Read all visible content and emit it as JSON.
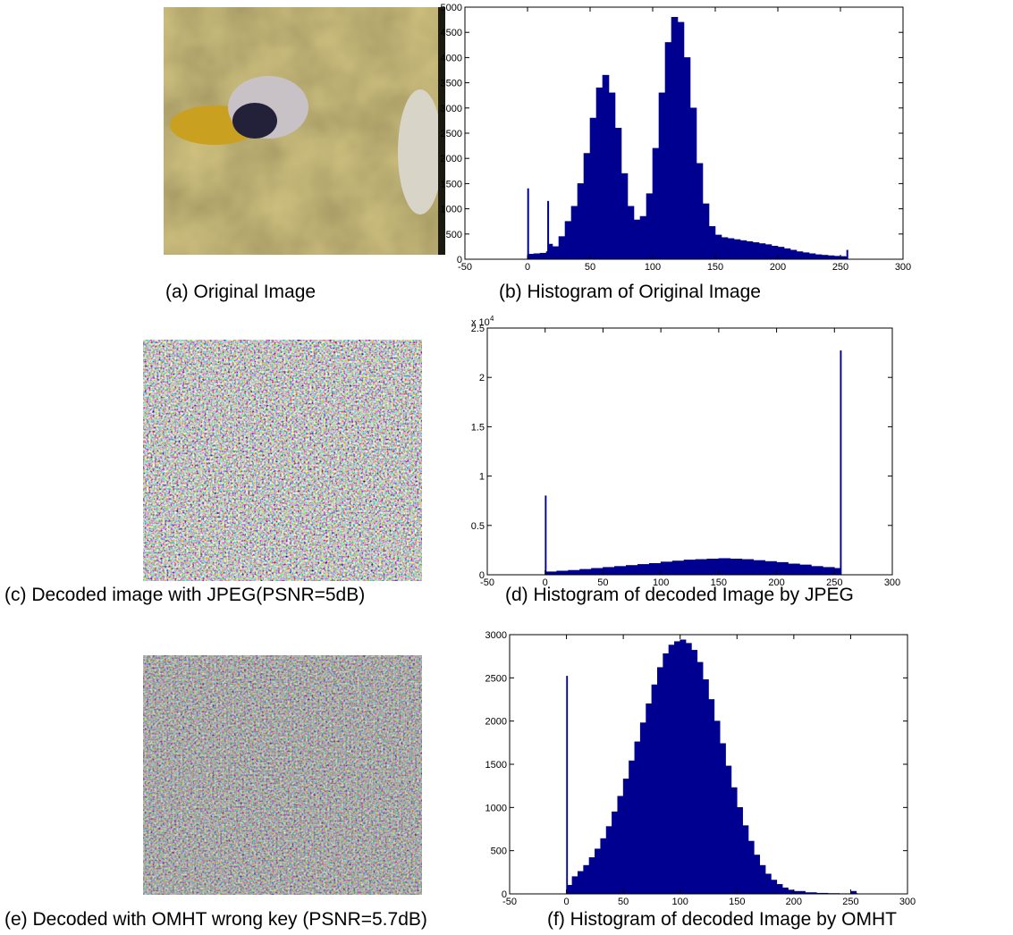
{
  "images": [
    {
      "caption": "(a) Original Image"
    },
    {
      "caption": "(c) Decoded image with JPEG(PSNR=5dB)"
    },
    {
      "caption": "(e) Decoded with OMHT wrong key (PSNR=5.7dB)"
    }
  ],
  "chart_data": [
    {
      "type": "bar",
      "caption": "(b) Histogram of Original Image",
      "color": "#000090",
      "x": [
        0,
        1,
        5,
        10,
        15,
        16,
        17,
        20,
        25,
        30,
        35,
        40,
        45,
        50,
        55,
        60,
        65,
        70,
        75,
        80,
        85,
        90,
        95,
        100,
        105,
        110,
        115,
        120,
        125,
        130,
        135,
        140,
        145,
        150,
        155,
        160,
        165,
        170,
        175,
        180,
        185,
        190,
        195,
        200,
        205,
        210,
        215,
        220,
        225,
        230,
        235,
        240,
        245,
        250,
        254,
        255
      ],
      "values": [
        1400,
        100,
        110,
        120,
        150,
        1150,
        300,
        250,
        450,
        750,
        1050,
        1500,
        2100,
        2800,
        3400,
        3650,
        3300,
        2600,
        1700,
        1050,
        780,
        850,
        1300,
        2200,
        3300,
        4300,
        4800,
        4700,
        4000,
        3000,
        1900,
        1100,
        650,
        480,
        430,
        410,
        390,
        370,
        350,
        330,
        310,
        290,
        260,
        240,
        210,
        180,
        150,
        130,
        110,
        90,
        80,
        70,
        60,
        55,
        50,
        180
      ],
      "xlim": [
        -50,
        300
      ],
      "xticks": [
        -50,
        0,
        50,
        100,
        150,
        200,
        250,
        300
      ],
      "ylim": [
        0,
        5000
      ],
      "yticks": [
        0,
        500,
        1000,
        1500,
        2000,
        2500,
        3000,
        3500,
        4000,
        4500,
        5000
      ]
    },
    {
      "type": "bar",
      "caption": "(d) Histogram of decoded Image by JPEG",
      "color": "#000090",
      "x": [
        0,
        1,
        10,
        20,
        30,
        40,
        50,
        60,
        70,
        80,
        90,
        100,
        110,
        120,
        130,
        140,
        150,
        160,
        170,
        180,
        190,
        200,
        210,
        220,
        230,
        240,
        250,
        255
      ],
      "values": [
        8000,
        300,
        380,
        450,
        550,
        650,
        750,
        850,
        950,
        1050,
        1150,
        1300,
        1400,
        1500,
        1550,
        1600,
        1650,
        1600,
        1550,
        1450,
        1350,
        1250,
        1100,
        1000,
        850,
        750,
        650,
        22700
      ],
      "xlim": [
        -50,
        300
      ],
      "xticks": [
        -50,
        0,
        50,
        100,
        150,
        200,
        250,
        300
      ],
      "ylim": [
        0,
        25000
      ],
      "yticks": [
        0,
        {
          "value": 5000,
          "label": "0.5"
        },
        {
          "value": 10000,
          "label": "1"
        },
        {
          "value": 15000,
          "label": "1.5"
        },
        {
          "value": 20000,
          "label": "2"
        },
        {
          "value": 25000,
          "label": "2.5"
        }
      ],
      "y_scale_label": "x 10",
      "y_scale_exponent": "4"
    },
    {
      "type": "bar",
      "caption": "(f) Histogram of decoded Image by OMHT",
      "color": "#000090",
      "x": [
        0,
        1,
        5,
        10,
        15,
        20,
        25,
        30,
        35,
        40,
        45,
        50,
        55,
        60,
        65,
        70,
        75,
        80,
        85,
        90,
        95,
        100,
        105,
        110,
        115,
        120,
        125,
        130,
        135,
        140,
        145,
        150,
        155,
        160,
        165,
        170,
        175,
        180,
        185,
        190,
        195,
        200,
        210,
        220,
        230,
        240,
        250,
        255
      ],
      "values": [
        2520,
        100,
        200,
        260,
        330,
        420,
        520,
        640,
        780,
        950,
        1130,
        1330,
        1540,
        1760,
        1980,
        2200,
        2420,
        2620,
        2780,
        2880,
        2920,
        2940,
        2900,
        2820,
        2680,
        2480,
        2250,
        2000,
        1740,
        1480,
        1230,
        1000,
        790,
        610,
        450,
        330,
        230,
        160,
        110,
        70,
        45,
        30,
        15,
        8,
        5,
        3,
        30,
        5
      ],
      "xlim": [
        -50,
        300
      ],
      "xticks": [
        -50,
        0,
        50,
        100,
        150,
        200,
        250,
        300
      ],
      "ylim": [
        0,
        3000
      ],
      "yticks": [
        0,
        500,
        1000,
        1500,
        2000,
        2500,
        3000
      ]
    }
  ]
}
